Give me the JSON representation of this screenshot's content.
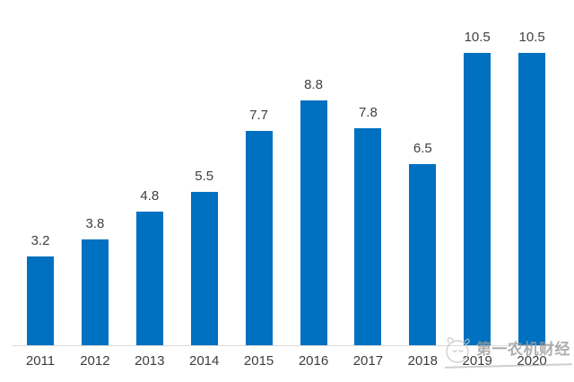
{
  "chart_data": {
    "type": "bar",
    "title": "",
    "xlabel": "",
    "ylabel": "",
    "categories": [
      "2011",
      "2012",
      "2013",
      "2014",
      "2015",
      "2016",
      "2017",
      "2018",
      "2019",
      "2020"
    ],
    "values": [
      3.2,
      3.8,
      4.8,
      5.5,
      7.7,
      8.8,
      7.8,
      6.5,
      10.5,
      10.5
    ],
    "data_labels": [
      "3.2",
      "3.8",
      "4.8",
      "5.5",
      "7.7",
      "8.8",
      "7.8",
      "6.5",
      "10.5",
      "10.5"
    ],
    "ylim": [
      0,
      12
    ],
    "grid": false,
    "legend_position": "none",
    "bar_color": "#0070C0",
    "value_label_color": "#404040",
    "tick_label_color": "#3d3d3d",
    "axis_line_color": "#d9d9d9",
    "background_color": "#ffffff"
  },
  "watermark": {
    "text": "第一农机财经",
    "color": "#9a9a9a",
    "logo": "animal-doodle-logo",
    "logo_color": "#c4c4c4"
  }
}
